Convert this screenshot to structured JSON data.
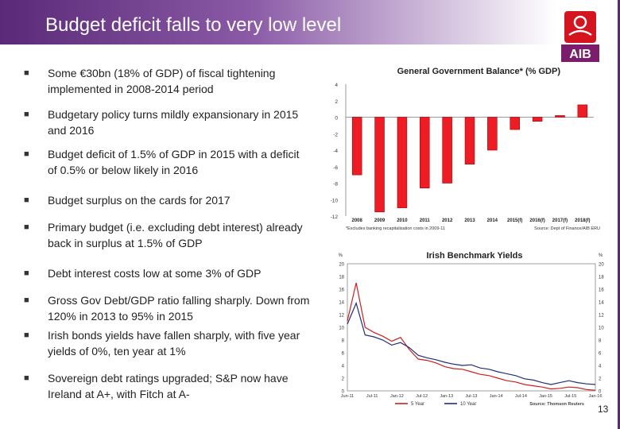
{
  "header": {
    "title": "Budget deficit falls to very low level"
  },
  "logo": {
    "text": "AIB",
    "brand_color": "#7b1d6b",
    "accent": "#d4141f"
  },
  "bullets": [
    "Some €30bn (18% of GDP) of fiscal tightening implemented in 2008-2014 period",
    "Budgetary policy turns mildly expansionary in 2015 and 2016",
    "Budget deficit of 1.5% of GDP in 2015 with a deficit of 0.5% or below likely in 2016",
    "Budget surplus on the cards for 2017",
    "Primary budget (i.e. excluding debt interest) already back in surplus at 1.5% of GDP",
    "Debt interest costs low at some 3% of GDP",
    "Gross Gov Debt/GDP ratio falling sharply. Down from 120% in 2013 to 95% in 2015",
    "Irish bonds yields have fallen sharply, with five year yields of 0%, ten year at 1%",
    "Sovereign debt ratings upgraded; S&P now have Ireland at A+, with Fitch at A-"
  ],
  "page_number": "13",
  "chart_data": [
    {
      "type": "bar",
      "title": "General Government Balance* (% GDP)",
      "categories": [
        "2008",
        "2009",
        "2010",
        "2011",
        "2012",
        "2013",
        "2014",
        "2015(f)",
        "2016(f)",
        "2017(f)",
        "2018(f)"
      ],
      "values": [
        -7.0,
        -11.5,
        -11.0,
        -8.6,
        -8.0,
        -5.7,
        -4.0,
        -1.5,
        -0.5,
        0.2,
        1.5
      ],
      "ylim": [
        -12,
        4
      ],
      "yticks": [
        4,
        2,
        0,
        -2,
        -4,
        -6,
        -8,
        -10,
        -12
      ],
      "bar_color": "#ee1c25",
      "footnote": "*Excludes banking recapitalisation costs in 2009-11",
      "source": "Source: Dept of Finance/AIB ERU"
    },
    {
      "type": "line",
      "title": "Irish Benchmark Yields",
      "y_unit_left": "%",
      "y_unit_right": "%",
      "ylim": [
        0,
        20
      ],
      "yticks": [
        0,
        2,
        4,
        6,
        8,
        10,
        12,
        14,
        16,
        18,
        20
      ],
      "x_ticks": [
        "Jun-11",
        "Jul-11",
        "Jan-12",
        "Jul-12",
        "Jan-13",
        "Jul-13",
        "Jan-14",
        "Jul-14",
        "Jan-15",
        "Jul-15",
        "Jan-16"
      ],
      "x": [
        "Jun-11",
        "Jul-11",
        "Sep-11",
        "Nov-11",
        "Jan-12",
        "Mar-12",
        "May-12",
        "Jul-12",
        "Sep-12",
        "Nov-12",
        "Jan-13",
        "Mar-13",
        "May-13",
        "Jul-13",
        "Sep-13",
        "Nov-13",
        "Jan-14",
        "Mar-14",
        "May-14",
        "Jul-14",
        "Sep-14",
        "Nov-14",
        "Jan-15",
        "Mar-15",
        "May-15",
        "Jul-15",
        "Sep-15",
        "Nov-15",
        "Jan-16"
      ],
      "series": [
        {
          "name": "5 Year",
          "color": "#cc1f1f",
          "values": [
            11.0,
            17.0,
            10.0,
            9.2,
            8.6,
            7.8,
            8.4,
            6.5,
            5.0,
            4.8,
            4.4,
            3.8,
            3.5,
            3.4,
            3.0,
            2.6,
            2.4,
            2.0,
            1.6,
            1.4,
            1.0,
            0.8,
            0.6,
            0.3,
            0.4,
            0.6,
            0.5,
            0.2,
            0.1
          ]
        },
        {
          "name": "10 Year",
          "color": "#1f2f7a",
          "values": [
            10.5,
            13.8,
            8.8,
            8.5,
            8.0,
            7.2,
            7.6,
            6.8,
            5.6,
            5.2,
            4.9,
            4.5,
            4.2,
            4.0,
            4.1,
            3.6,
            3.4,
            3.0,
            2.7,
            2.4,
            1.9,
            1.7,
            1.3,
            1.0,
            1.3,
            1.6,
            1.3,
            1.1,
            1.0
          ]
        }
      ],
      "source": "Source: Thomson Reuters"
    }
  ]
}
